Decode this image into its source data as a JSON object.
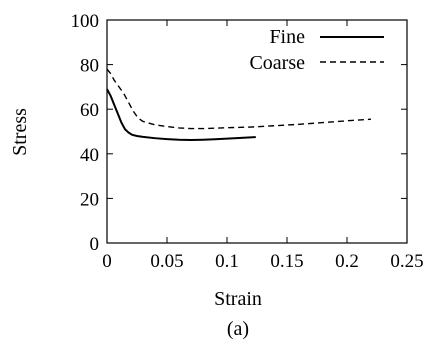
{
  "caption": "(a)",
  "chart_data": {
    "type": "line",
    "title": "",
    "xlabel": "Strain",
    "ylabel": "Stress",
    "xlim": [
      0,
      0.25
    ],
    "ylim": [
      0,
      100
    ],
    "xticks": [
      0,
      0.05,
      0.1,
      0.15,
      0.2,
      0.25
    ],
    "xtick_labels": [
      "0",
      "0.05",
      "0.1",
      "0.15",
      "0.2",
      "0.25"
    ],
    "yticks": [
      0,
      20,
      40,
      60,
      80,
      100
    ],
    "ytick_labels": [
      "0",
      "20",
      "40",
      "60",
      "80",
      "100"
    ],
    "grid": false,
    "legend_position": "top-right",
    "series": [
      {
        "name": "Fine",
        "style": "solid",
        "x": [
          0,
          0.003,
          0.006,
          0.009,
          0.012,
          0.015,
          0.018,
          0.021,
          0.025,
          0.03,
          0.04,
          0.05,
          0.06,
          0.07,
          0.08,
          0.09,
          0.1,
          0.11,
          0.124
        ],
        "y": [
          69,
          66,
          62,
          58,
          54,
          51,
          49.5,
          48.5,
          48,
          47.6,
          47,
          46.6,
          46.3,
          46.2,
          46.3,
          46.5,
          46.8,
          47.1,
          47.5
        ]
      },
      {
        "name": "Coarse",
        "style": "dashed",
        "x": [
          0,
          0.003,
          0.006,
          0.01,
          0.014,
          0.018,
          0.022,
          0.026,
          0.03,
          0.04,
          0.05,
          0.06,
          0.07,
          0.08,
          0.09,
          0.1,
          0.12,
          0.14,
          0.16,
          0.18,
          0.2,
          0.22
        ],
        "y": [
          78,
          76,
          73,
          70,
          67,
          63,
          59,
          56,
          54.5,
          53,
          52.2,
          51.6,
          51.3,
          51.3,
          51.5,
          51.7,
          52,
          52.6,
          53.2,
          54,
          54.8,
          55.5
        ]
      }
    ]
  }
}
